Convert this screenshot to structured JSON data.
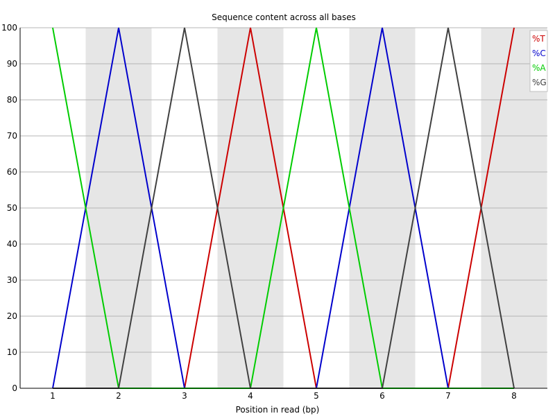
{
  "chart_data": {
    "type": "line",
    "title": "Sequence content across all bases",
    "xlabel": "Position in read (bp)",
    "ylabel": "",
    "x": [
      "1",
      "2",
      "3",
      "4",
      "5",
      "6",
      "7",
      "8"
    ],
    "ylim": [
      0,
      100
    ],
    "yticks": [
      0,
      10,
      20,
      30,
      40,
      50,
      60,
      70,
      80,
      90,
      100
    ],
    "grid": "horizontal",
    "alternating_bands": true,
    "legend_placement": "top-right",
    "series": [
      {
        "name": "%T",
        "color": "#cc0000",
        "values": [
          0,
          0,
          0,
          100,
          0,
          0,
          0,
          100
        ]
      },
      {
        "name": "%C",
        "color": "#0000cc",
        "values": [
          0,
          100,
          0,
          0,
          0,
          100,
          0,
          0
        ]
      },
      {
        "name": "%A",
        "color": "#00cc00",
        "values": [
          100,
          0,
          0,
          0,
          100,
          0,
          0,
          0
        ]
      },
      {
        "name": "%G",
        "color": "#404040",
        "values": [
          0,
          0,
          100,
          0,
          0,
          0,
          100,
          0
        ]
      }
    ],
    "colors": {
      "band": "#e6e6e6",
      "grid": "#b4b4b4",
      "axis": "#000000"
    }
  }
}
